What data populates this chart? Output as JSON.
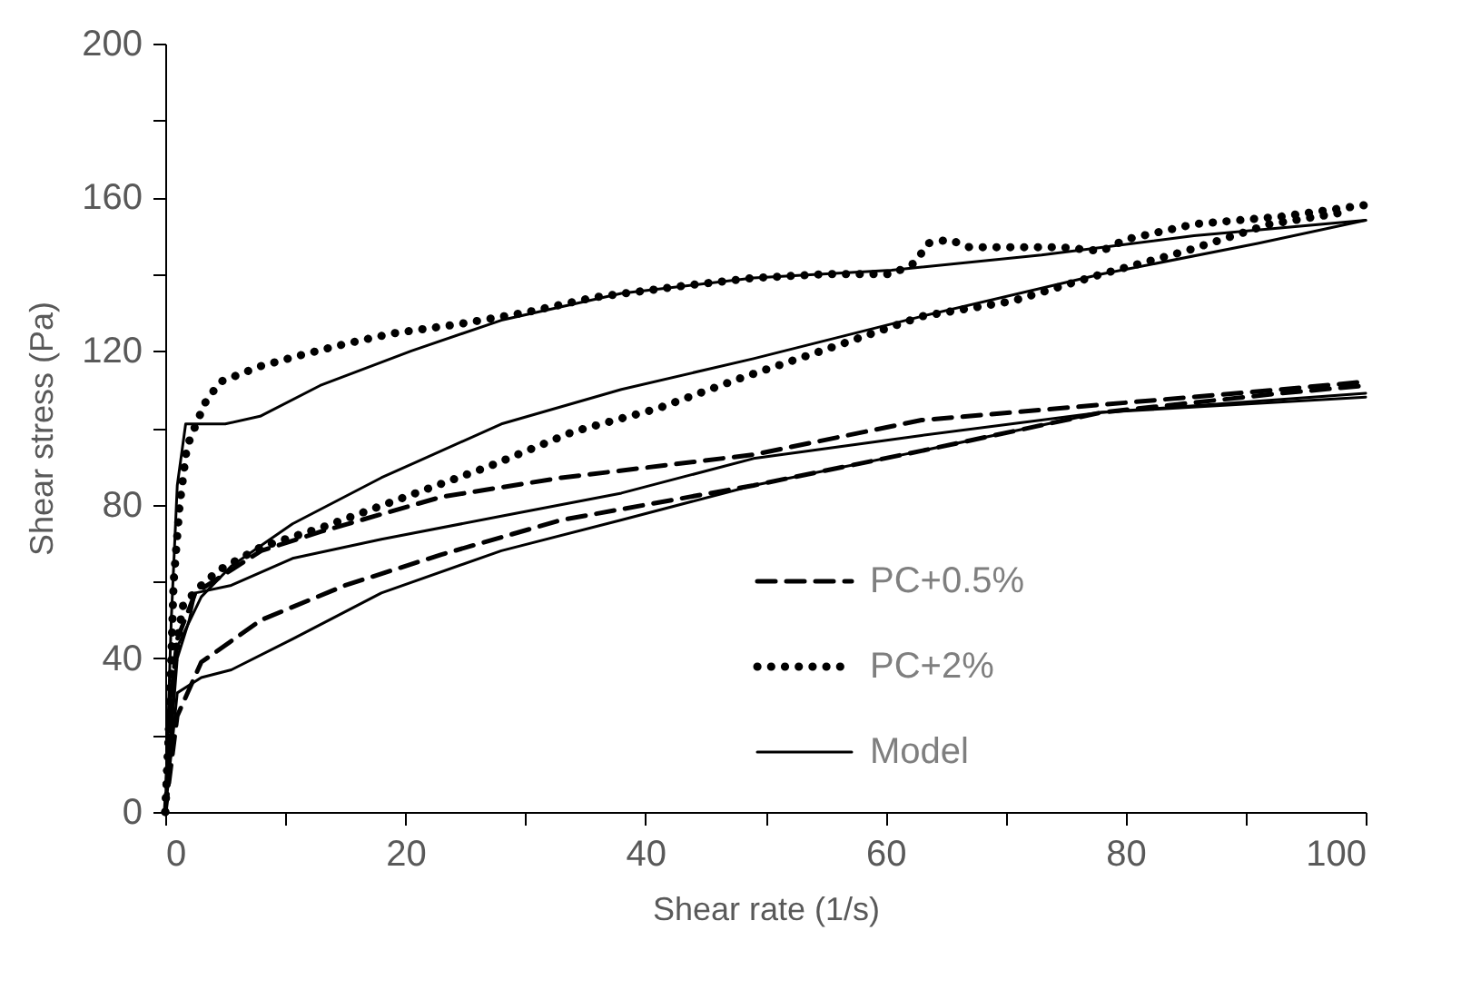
{
  "chart_data": {
    "type": "line",
    "xlabel": "Shear rate (1/s)",
    "ylabel": "Shear stress (Pa)",
    "xlim": [
      0,
      100
    ],
    "ylim": [
      0,
      200
    ],
    "xticks": [
      0,
      {
        "value": 10,
        "label": null
      },
      20,
      {
        "value": 30,
        "label": null
      },
      40,
      {
        "value": 50,
        "label": null
      },
      60,
      {
        "value": 70,
        "label": null
      },
      80,
      {
        "value": 90,
        "label": null
      },
      100
    ],
    "yticks": [
      0,
      {
        "value": 20,
        "label": null
      },
      40,
      {
        "value": 60,
        "label": null
      },
      80,
      {
        "value": 100,
        "label": null
      },
      120,
      {
        "value": 140,
        "label": null
      },
      160,
      {
        "value": 180,
        "label": null
      },
      200
    ],
    "grid": false,
    "legend": "bottom right",
    "marker": "none",
    "series": [
      {
        "name": "PC+0.5%",
        "color": "#000000",
        "line_style": "dashed",
        "x": [
          0,
          0.5,
          1,
          2.5,
          8,
          13,
          23,
          33,
          49,
          63,
          78,
          93,
          100
        ],
        "values": [
          0,
          30,
          45,
          57,
          68,
          73,
          82,
          87,
          93,
          102,
          106,
          110,
          112
        ]
      },
      {
        "color": "#000000",
        "line_style": "dashed",
        "x": [
          0,
          1,
          3,
          8,
          15,
          23,
          33,
          49,
          63,
          78,
          93,
          100
        ],
        "values": [
          0,
          25,
          39,
          50,
          59,
          67,
          76,
          85,
          94,
          104,
          109,
          111
        ]
      },
      {
        "name": "PC+2%",
        "color": "#000000",
        "line_style": "dotted",
        "x": [
          0,
          0.3,
          0.7,
          1.2,
          1.8,
          2.7,
          3.4,
          4.6,
          7.9,
          11.4,
          15.2,
          19,
          24.5,
          30,
          35.8,
          43.3,
          49,
          55,
          60.5,
          62.5,
          63.5,
          65.3,
          67,
          74.6,
          78,
          80,
          85.7,
          93,
          100
        ],
        "values": [
          0,
          20,
          60,
          80,
          95,
          102,
          107,
          112,
          116,
          119,
          122,
          124.6,
          127,
          130,
          134,
          137,
          139,
          140,
          140,
          143,
          148,
          149,
          147,
          147,
          146,
          149,
          153,
          155,
          158
        ]
      },
      {
        "color": "#000000",
        "line_style": "dotted",
        "x": [
          0,
          0.5,
          1.5,
          3,
          4.5,
          8,
          13,
          20,
          27,
          34,
          41,
          48,
          55.6,
          63,
          70.6,
          78,
          85,
          92,
          98
        ],
        "values": [
          0,
          35,
          54,
          59,
          63,
          69,
          74,
          82,
          90,
          99,
          105,
          113,
          121,
          129,
          133,
          140,
          146,
          153,
          156
        ]
      },
      {
        "name": "Model",
        "color": "#000000",
        "line_style": "solid",
        "x": [
          0,
          0.5,
          1,
          1.7,
          5,
          7.9,
          12.9,
          20.5,
          28,
          38,
          49,
          60.5,
          73,
          85.7,
          100
        ],
        "values": [
          0,
          50,
          85,
          101,
          101,
          103,
          111,
          120,
          128,
          135,
          139,
          141,
          145,
          150,
          154
        ]
      },
      {
        "color": "#000000",
        "line_style": "solid",
        "x": [
          0,
          1,
          3,
          5.5,
          10.6,
          18,
          28,
          38,
          49,
          63,
          78,
          91,
          100
        ],
        "values": [
          0,
          43,
          56,
          64,
          75,
          87,
          101,
          110,
          118,
          129,
          140,
          148,
          154
        ]
      },
      {
        "color": "#000000",
        "line_style": "solid",
        "x": [
          0,
          1,
          2,
          2.5,
          5.5,
          10.6,
          18,
          28,
          38,
          49,
          63,
          78,
          100
        ],
        "values": [
          0,
          40,
          50,
          57,
          59,
          66,
          71,
          77,
          83,
          92,
          98,
          104,
          109
        ]
      },
      {
        "color": "#000000",
        "line_style": "solid",
        "x": [
          0,
          1,
          3,
          5.5,
          10.6,
          18,
          28,
          38,
          49,
          63,
          78,
          100
        ],
        "values": [
          0,
          31,
          35,
          37,
          45,
          57,
          68,
          76,
          85,
          94,
          104,
          108
        ]
      }
    ]
  }
}
